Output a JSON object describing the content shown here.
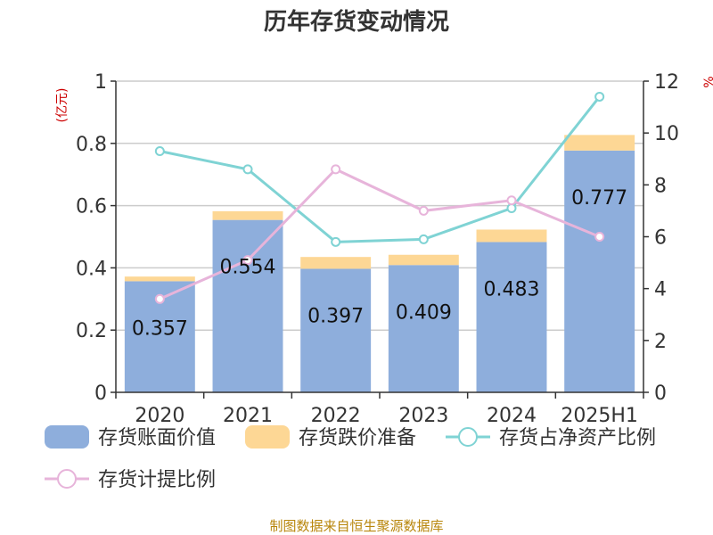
{
  "chart_data": {
    "type": "bar",
    "title": "历年存货变动情况",
    "unit_left": "(亿元)",
    "unit_right": "%",
    "categories": [
      "2020",
      "2021",
      "2022",
      "2023",
      "2024",
      "2025H1"
    ],
    "y_left": {
      "min": 0,
      "max": 1,
      "ticks": [
        "0",
        "0.2",
        "0.4",
        "0.6",
        "0.8",
        "1"
      ]
    },
    "y_right": {
      "min": 0,
      "max": 12,
      "ticks": [
        "0",
        "2",
        "4",
        "6",
        "8",
        "10",
        "12"
      ]
    },
    "grid": true,
    "legend_position": "bottom",
    "series": [
      {
        "name": "存货账面价值",
        "type": "bar",
        "stack": "main",
        "axis": "left",
        "color": "#8eaedc",
        "values": [
          0.357,
          0.554,
          0.397,
          0.409,
          0.483,
          0.777
        ],
        "labels": [
          "0.357",
          "0.554",
          "0.397",
          "0.409",
          "0.483",
          "0.777"
        ]
      },
      {
        "name": "存货跌价准备",
        "type": "bar",
        "stack": "main",
        "axis": "left",
        "color": "#fdd795",
        "values": [
          0.015,
          0.028,
          0.038,
          0.033,
          0.04,
          0.05
        ]
      },
      {
        "name": "存货占净资产比例",
        "type": "line",
        "axis": "right",
        "color": "#7fd3d4",
        "values": [
          9.3,
          8.6,
          5.8,
          5.9,
          7.1,
          11.4
        ]
      },
      {
        "name": "存货计提比例",
        "type": "line",
        "axis": "right",
        "color": "#e7b4da",
        "values": [
          3.6,
          5.1,
          8.6,
          7.0,
          7.4,
          6.0
        ]
      }
    ]
  },
  "footer": {
    "source": "制图数据来自恒生聚源数据库"
  }
}
